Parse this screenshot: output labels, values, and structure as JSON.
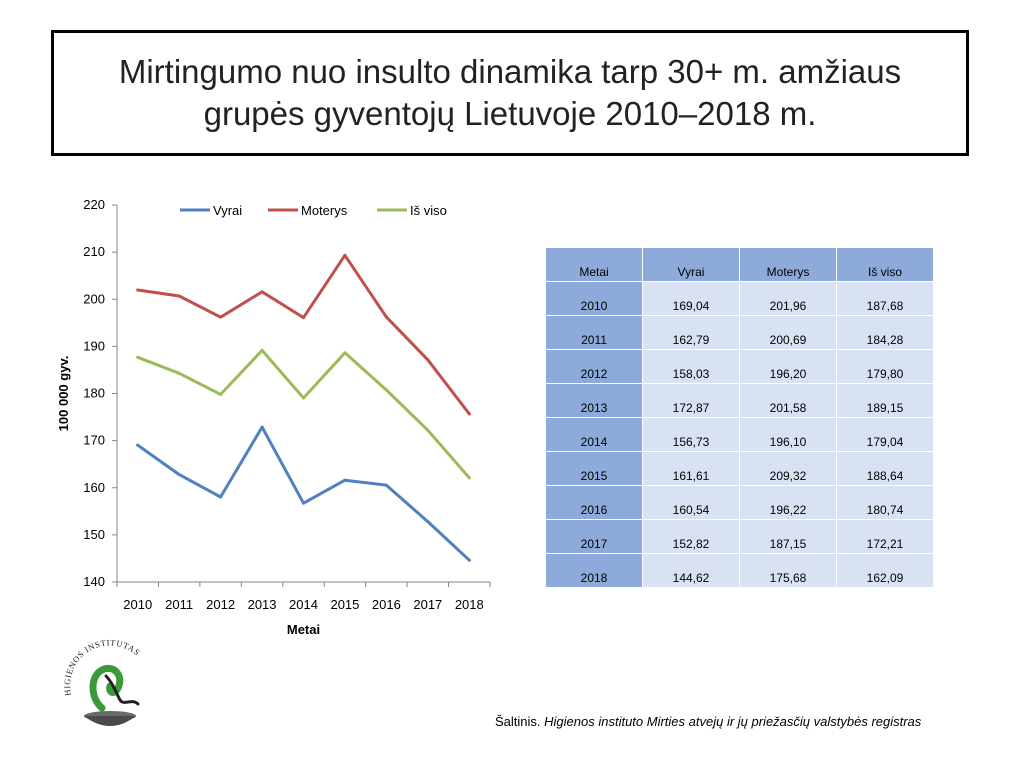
{
  "title": {
    "line1": "Mirtingumo nuo insulto dinamika tarp 30+ m. amžiaus",
    "line2": "grupės gyventojų Lietuvoje 2010–2018 m."
  },
  "chart_data": {
    "type": "line",
    "x": [
      "2010",
      "2011",
      "2012",
      "2013",
      "2014",
      "2015",
      "2016",
      "2017",
      "2018"
    ],
    "series": [
      {
        "name": "Vyrai",
        "color": "#4f81bd",
        "values": [
          169.04,
          162.79,
          158.03,
          172.87,
          156.73,
          161.61,
          160.54,
          152.82,
          144.62
        ]
      },
      {
        "name": "Moterys",
        "color": "#c0504d",
        "values": [
          201.96,
          200.69,
          196.2,
          201.58,
          196.1,
          209.32,
          196.22,
          187.15,
          175.68
        ]
      },
      {
        "name": "Iš viso",
        "color": "#9bbb59",
        "values": [
          187.68,
          184.28,
          179.8,
          189.15,
          179.04,
          188.64,
          180.74,
          172.21,
          162.09
        ]
      }
    ],
    "xlabel": "Metai",
    "ylabel": "100 000 gyv.",
    "ylim": [
      140,
      220
    ],
    "yticks": [
      "140",
      "150",
      "160",
      "170",
      "180",
      "190",
      "200",
      "210",
      "220"
    ],
    "legend": "top",
    "grid": false
  },
  "table": {
    "headers": [
      "Metai",
      "Vyrai",
      "Moterys",
      "Iš viso"
    ],
    "rows": [
      [
        "2010",
        "169,04",
        "201,96",
        "187,68"
      ],
      [
        "2011",
        "162,79",
        "200,69",
        "184,28"
      ],
      [
        "2012",
        "158,03",
        "196,20",
        "179,80"
      ],
      [
        "2013",
        "172,87",
        "201,58",
        "189,15"
      ],
      [
        "2014",
        "156,73",
        "196,10",
        "179,04"
      ],
      [
        "2015",
        "161,61",
        "209,32",
        "188,64"
      ],
      [
        "2016",
        "160,54",
        "196,22",
        "180,74"
      ],
      [
        "2017",
        "152,82",
        "187,15",
        "172,21"
      ],
      [
        "2018",
        "144,62",
        "175,68",
        "162,09"
      ]
    ],
    "header_color": "#8eaadb",
    "cell_color": "#d9e2f3"
  },
  "logo": {
    "text": "HIGIENOS INSTITUTAS",
    "icon": "higienos-institutas-logo"
  },
  "source": {
    "prefix": "Šaltinis. ",
    "italic": "Higienos instituto  Mirties atvejų ir jų priežasčių valstybės registras"
  }
}
